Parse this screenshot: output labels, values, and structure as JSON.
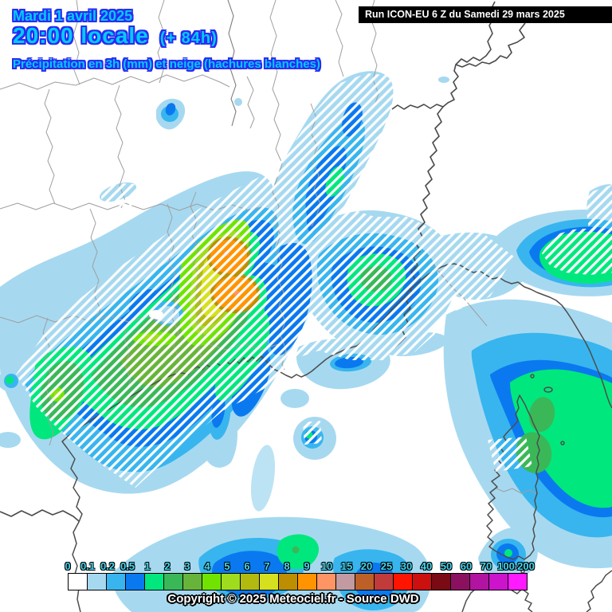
{
  "header": {
    "date_line": "Mardi 1 avril 2025",
    "time_line": "20:00 locale",
    "time_offset": "(+ 84h)",
    "subtitle": "Précipitation en 3h (mm) et neige (hachures blanches)",
    "text_color": "#00ccff",
    "outline_color": "#2b2bf0"
  },
  "run_box": {
    "label": "Run ICON-EU 6 Z du Samedi 29 mars 2025",
    "background": "#000000",
    "text_color": "#ffffff"
  },
  "legend": {
    "labels": [
      "0",
      "0.1",
      "0.2",
      "0.5",
      "1",
      "2",
      "3",
      "4",
      "5",
      "6",
      "7",
      "8",
      "9",
      "10",
      "15",
      "20",
      "25",
      "30",
      "40",
      "50",
      "60",
      "70",
      "100",
      "200"
    ],
    "colors": [
      "#ffffff",
      "#a6d9f0",
      "#38b5ee",
      "#0a79f0",
      "#00e87d",
      "#3ab858",
      "#68b43a",
      "#70e400",
      "#a0dc1e",
      "#b2ba10",
      "#d6e01e",
      "#bc8e00",
      "#ff9400",
      "#ff9464",
      "#c29aa2",
      "#bc6028",
      "#c23b3b",
      "#ff1400",
      "#cc0f0f",
      "#7a0a14",
      "#8c1060",
      "#b014a0",
      "#cc14cc",
      "#ff1aff"
    ],
    "label_color": "#44d7ef"
  },
  "footer": {
    "copyright": "Copyright © 2025 Meteociel.fr - Source DWD"
  },
  "map": {
    "snow_hatch_color": "#ffffff",
    "department_border_color": "#9f9f9f",
    "country_border_color": "#4a4a4a",
    "coast_color": "#4d4d4d",
    "background": "#ffffff"
  }
}
